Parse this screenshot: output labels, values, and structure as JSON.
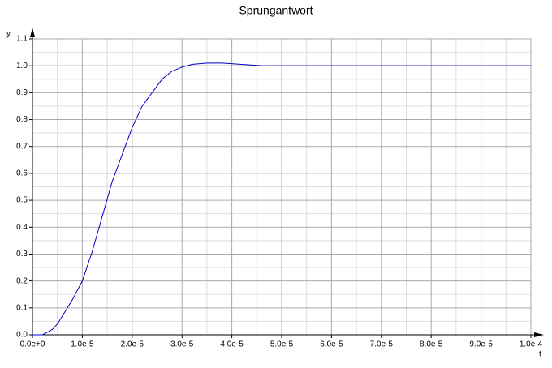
{
  "chart_data": {
    "type": "line",
    "title": "Sprungantwort",
    "x_label": "t",
    "y_label": "y",
    "x": [
      0,
      2e-06,
      3e-06,
      4e-06,
      5e-06,
      6e-06,
      7e-06,
      8e-06,
      1e-05,
      1.2e-05,
      1.4e-05,
      1.6e-05,
      1.8e-05,
      2e-05,
      2.2e-05,
      2.4e-05,
      2.6e-05,
      2.8e-05,
      3e-05,
      3.2e-05,
      3.5e-05,
      3.8e-05,
      4.2e-05,
      4.6e-05,
      5e-05,
      0.0001
    ],
    "series": [
      {
        "color": "#0000c0",
        "values": [
          0,
          0.0,
          0.01,
          0.02,
          0.04,
          0.07,
          0.1,
          0.13,
          0.2,
          0.31,
          0.44,
          0.57,
          0.67,
          0.77,
          0.85,
          0.9,
          0.95,
          0.98,
          0.995,
          1.005,
          1.01,
          1.01,
          1.005,
          1.0,
          1.0,
          1.0
        ]
      }
    ],
    "xlim": [
      0,
      0.0001
    ],
    "xticks": [
      {
        "value": 0,
        "label": "0.0e+0"
      },
      {
        "value": 1e-05,
        "label": "1.0e-5"
      },
      {
        "value": 2e-05,
        "label": "2.0e-5"
      },
      {
        "value": 3e-05,
        "label": "3.0e-5"
      },
      {
        "value": 4e-05,
        "label": "4.0e-5"
      },
      {
        "value": 5e-05,
        "label": "5.0e-5"
      },
      {
        "value": 6e-05,
        "label": "6.0e-5"
      },
      {
        "value": 7e-05,
        "label": "7.0e-5"
      },
      {
        "value": 8e-05,
        "label": "8.0e-5"
      },
      {
        "value": 9e-05,
        "label": "9.0e-5"
      },
      {
        "value": 0.0001,
        "label": "1.0e-4"
      }
    ],
    "ylim": [
      0,
      1.1
    ],
    "yticks": [
      {
        "value": 0,
        "label": "0.0"
      },
      0.1,
      0.2,
      0.3,
      0.4,
      0.5,
      0.6,
      0.7,
      0.8,
      0.9,
      {
        "value": 1,
        "label": "1.0"
      },
      1.1
    ],
    "grid": true
  }
}
